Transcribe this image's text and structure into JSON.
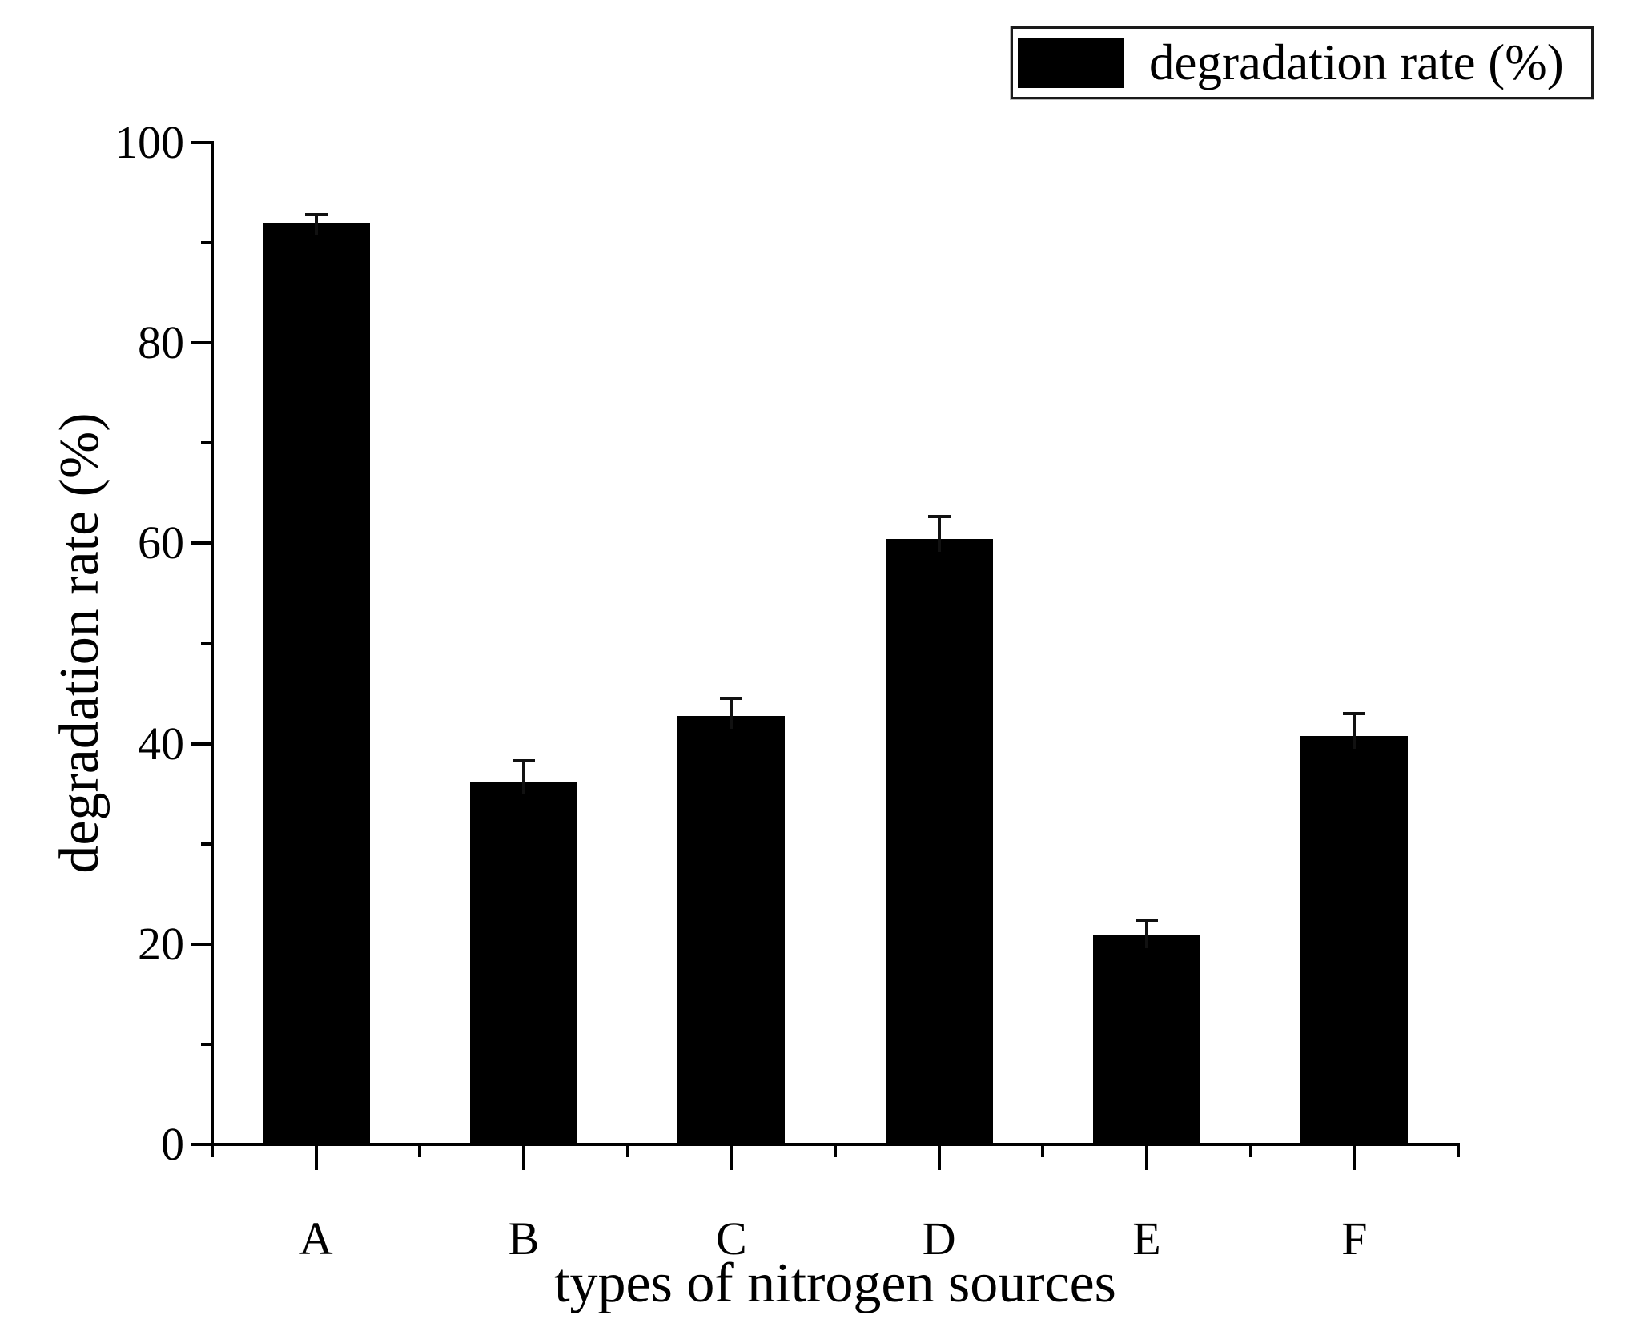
{
  "figure": {
    "background": "#ffffff",
    "bar_color": "#000000",
    "axis_color": "#000000"
  },
  "legend": {
    "label": "degradation rate (%)",
    "swatch_color": "#000000",
    "position": "top-right"
  },
  "chart_data": {
    "type": "bar",
    "title": "",
    "categories": [
      "A",
      "B",
      "C",
      "D",
      "E",
      "F"
    ],
    "series": [
      {
        "name": "degradation rate (%)",
        "values": [
          92.0,
          36.2,
          42.8,
          60.4,
          20.9,
          40.8
        ],
        "errors_plus": [
          0.8,
          2.1,
          1.7,
          2.3,
          1.5,
          2.2
        ],
        "color": "#000000"
      }
    ],
    "xlabel": "types of nitrogen sources",
    "ylabel": "degradation rate (%)",
    "ylim": [
      0,
      100
    ],
    "ytick_labels": [
      "0",
      "20",
      "40",
      "60",
      "80",
      "100"
    ],
    "ytick_major_step": 20,
    "ytick_minor_step": 10,
    "grid": false,
    "error_bars": true,
    "legend_position": "top-right"
  }
}
